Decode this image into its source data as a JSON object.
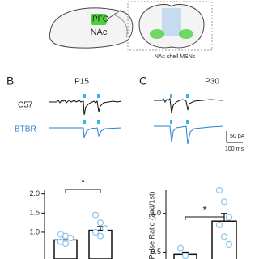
{
  "figure": {
    "header": {
      "pfc": "PFC",
      "nac": "NAc",
      "region": "NAc shell MSNs"
    },
    "panels": [
      {
        "letter": "B",
        "age": "P15"
      },
      {
        "letter": "C",
        "age": "P30"
      }
    ],
    "strains": [
      "C57",
      "BTBR"
    ],
    "scale": {
      "current": "50 pA",
      "time": "100 ms"
    },
    "charts": [
      {
        "type": "bar",
        "ylim": [
          0.3,
          2.1
        ],
        "yticks": [
          {
            "value": 1.0,
            "label": "1.0"
          },
          1.5,
          {
            "value": 2.0,
            "label": "2.0"
          }
        ],
        "significance": "*",
        "values": [
          0.8,
          1.05
        ],
        "errors": [
          0.07,
          0.1
        ],
        "points": [
          [
            0.95,
            0.9,
            0.85,
            0.75,
            0.7
          ],
          [
            1.45,
            1.25,
            1.1,
            1.0,
            0.9
          ]
        ]
      },
      {
        "type": "bar",
        "ylim": [
          0.4,
          1.3
        ],
        "yticks": [
          0.5,
          {
            "value": 1.0,
            "label": "1.0"
          }
        ],
        "ylabel": "-Pulse Ratio (2nd/1st)",
        "significance": "*",
        "values": [
          0.47,
          0.9
        ],
        "errors": [
          0.03,
          0.1
        ],
        "points": [
          [
            0.55,
            0.45
          ],
          [
            1.3,
            1.15,
            0.95,
            0.85,
            0.7,
            0.6
          ]
        ]
      }
    ]
  }
}
